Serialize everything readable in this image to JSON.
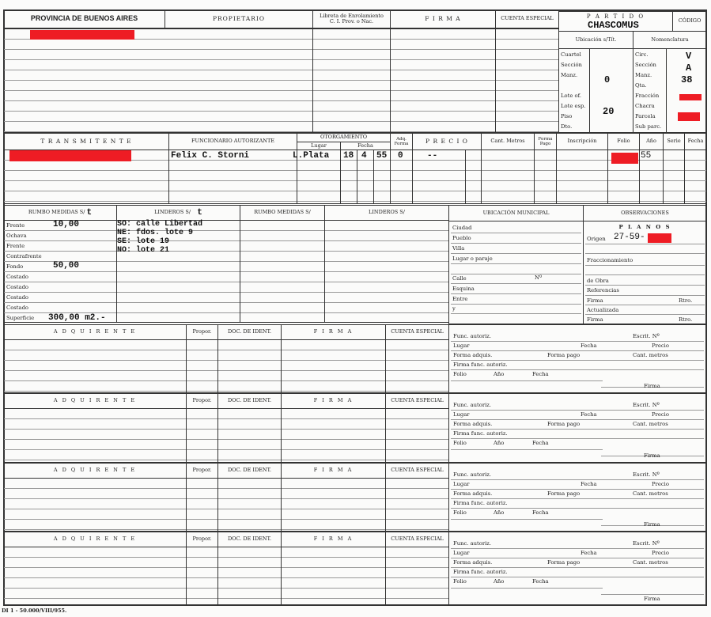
{
  "header": {
    "provincia": "PROVINCIA DE BUENOS AIRES",
    "propietario": "PROPIETARIO",
    "libreta_line1": "Libreta de Enrolamiento",
    "libreta_line2": "C. I. Prov. o Nac.",
    "firma": "F I R M A",
    "cuenta_especial": "CUENTA ESPECIAL",
    "partido_label": "P A R T I D O",
    "partido_value": "CHASCOMUS",
    "codigo": "CÓDIGO"
  },
  "ubicacion": {
    "title": "Ubicación s/Tít.",
    "labels": [
      "Cuartel",
      "Sección",
      "Manz.",
      "",
      "Lote of.",
      "Lote esp.",
      "Piso",
      "Dto."
    ],
    "values": {
      "manz": "0",
      "lote_esp": "20"
    }
  },
  "nomenclatura": {
    "title": "Nomenclatura",
    "labels": [
      "Circ.",
      "Sección",
      "Manz.",
      "Qta.",
      "Fracción",
      "Chacra",
      "Parcela",
      "Sub parc."
    ],
    "values": {
      "circ": "V",
      "seccion": "A",
      "manz": "38"
    }
  },
  "transmitente": {
    "headers": {
      "transmitente": "T R A N S M I T E N T E",
      "funcionario": "FUNCIONARIO AUTORIZANTE",
      "otorgamiento": "OTORGAMIENTO",
      "lugar": "Lugar",
      "fecha": "Fecha",
      "adq_forma": "Adq. Forma",
      "precio": "P R E C I O",
      "cant_metros": "Cant. Metros",
      "forma_pago": "Forma Pago",
      "inscripcion": "Inscripción",
      "folio": "Folio",
      "anio": "Año",
      "serie": "Serie",
      "fecha2": "Fecha"
    },
    "values": {
      "funcionario": "Felix C. Storni",
      "lugar": "L.Plata",
      "dia": "18",
      "mes": "4",
      "anio": "55",
      "adq_forma": "0",
      "precio": "--",
      "insc_anio": "55"
    }
  },
  "medidas": {
    "header1": "RUMBO MEDIDAS S/",
    "header1_mark": "t",
    "header2": "LINDEROS S/",
    "header2_mark": "t",
    "header3": "RUMBO MEDIDAS S/",
    "header4": "LINDEROS S/",
    "labels": [
      "Frente",
      "Ochava",
      "Frente",
      "Contrafrente",
      "Fondo",
      "Costado",
      "Costado",
      "Costado",
      "Costado",
      "Superficie"
    ],
    "values": {
      "frente": "10,00",
      "fondo": "50,00",
      "superficie": "300,00 m2.-"
    },
    "linderos": [
      "SO: calle Libertad",
      "NE: fdos. lote 9",
      "SE: lote 19",
      "NO: lote 21"
    ]
  },
  "municipal": {
    "title": "UBICACIÓN MUNICIPAL",
    "labels": [
      "Ciudad",
      "Pueblo",
      "Villa",
      "Lugar o paraje",
      "",
      "Calle",
      "Esquina",
      "Entre",
      "y"
    ],
    "numero": "Nº"
  },
  "observaciones": {
    "title": "OBSERVACIONES",
    "planos": "P L A N O S",
    "origen": "Origen",
    "origen_value": "27-59-",
    "fraccionamiento": "Fraccionamiento",
    "de_obra": "de Obra",
    "referencias": "Referencias",
    "firma": "Firma",
    "rtro": "Rtro.",
    "actualizada": "Actualizada"
  },
  "adquirente": {
    "headers": {
      "adquirente": "A D Q U I R E N T E",
      "propor": "Propor.",
      "doc": "DOC. DE IDENT.",
      "firma": "F I R M A",
      "cuenta": "CUENTA ESPECIAL"
    },
    "func": {
      "func_autoriz": "Func. autoriz.",
      "escrit": "Escrit. Nº",
      "lugar": "Lugar",
      "fecha": "Fecha",
      "precio": "Precio",
      "forma_adquis": "Forma adquis.",
      "forma_pago": "Forma pago",
      "cant_metros": "Cant. metros",
      "firma_func": "Firma func. autoriz.",
      "folio": "Folio",
      "anio": "Año",
      "fecha2": "Fecha",
      "firma": "Firma"
    }
  },
  "footer": {
    "print_code": "DI 1 - 50.000/VIII/955."
  },
  "colors": {
    "redaction": "#ee1c24",
    "ink": "#222222"
  }
}
